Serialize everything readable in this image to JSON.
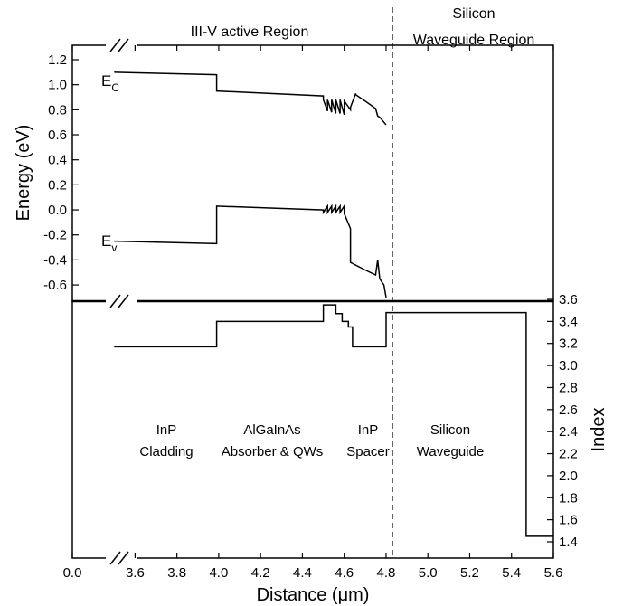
{
  "chart_data": [
    {
      "type": "line",
      "panel": "top",
      "ylabel": "Energy (eV)",
      "ylim": [
        -0.7,
        1.3
      ],
      "yticks": [
        "1.2",
        "1.0",
        "0.8",
        "0.6",
        "0.4",
        "0.2",
        "0.0",
        "-0.2",
        "-0.4",
        "-0.6"
      ],
      "xlim": [
        3.3,
        5.6
      ],
      "series": [
        {
          "name": "E",
          "sub": "C",
          "x": [
            3.5,
            3.99,
            3.99,
            4.5,
            4.5,
            4.52,
            4.52,
            4.54,
            4.54,
            4.56,
            4.56,
            4.58,
            4.58,
            4.6,
            4.6,
            4.63,
            4.63,
            4.655,
            4.655,
            4.7,
            4.75,
            4.76,
            4.77,
            4.79,
            4.8
          ],
          "y": [
            1.1,
            1.08,
            0.95,
            0.91,
            0.88,
            0.79,
            0.88,
            0.78,
            0.88,
            0.77,
            0.88,
            0.77,
            0.88,
            0.76,
            0.87,
            0.8,
            0.82,
            0.93,
            0.92,
            0.87,
            0.81,
            0.75,
            0.74,
            0.7,
            0.68
          ]
        },
        {
          "name": "E",
          "sub": "v",
          "x": [
            3.5,
            3.99,
            3.99,
            4.5,
            4.5,
            4.52,
            4.52,
            4.54,
            4.54,
            4.56,
            4.56,
            4.58,
            4.58,
            4.6,
            4.6,
            4.63,
            4.63,
            4.7,
            4.75,
            4.76,
            4.77,
            4.79,
            4.8
          ],
          "y": [
            -0.25,
            -0.27,
            0.03,
            0.0,
            -0.02,
            0.03,
            -0.02,
            0.03,
            -0.02,
            0.03,
            -0.02,
            0.03,
            -0.02,
            0.03,
            -0.03,
            -0.15,
            -0.42,
            -0.48,
            -0.52,
            -0.4,
            -0.55,
            -0.6,
            -0.7
          ]
        }
      ],
      "band_labels": {
        "ec_main": "E",
        "ec_sub": "C",
        "ev_main": "E",
        "ev_sub": "v"
      },
      "regions": [
        "III-V active Region",
        "Silicon",
        "Waveguide Region"
      ],
      "interface_x": 4.8,
      "axis_break": true
    },
    {
      "type": "line",
      "panel": "bottom",
      "xlabel": "Distance (μm)",
      "ylabel": "Index",
      "ylim": [
        1.3,
        3.6
      ],
      "yticks": [
        "3.6",
        "3.4",
        "3.2",
        "3.0",
        "2.8",
        "2.6",
        "2.4",
        "2.2",
        "2.0",
        "1.8",
        "1.6",
        "1.4"
      ],
      "xlim": [
        3.3,
        5.6
      ],
      "xticks": [
        "0.0",
        "3.6",
        "3.8",
        "4.0",
        "4.2",
        "4.4",
        "4.6",
        "4.8",
        "5.0",
        "5.2",
        "5.4",
        "5.6"
      ],
      "series": [
        {
          "name": "",
          "x": [
            3.5,
            3.99,
            3.99,
            4.5,
            4.5,
            4.56,
            4.56,
            4.59,
            4.59,
            4.62,
            4.62,
            4.64,
            4.64,
            4.8,
            4.8,
            5.47,
            5.47,
            5.6
          ],
          "y": [
            3.17,
            3.17,
            3.4,
            3.4,
            3.55,
            3.55,
            3.47,
            3.47,
            3.4,
            3.4,
            3.35,
            3.35,
            3.17,
            3.17,
            3.48,
            3.48,
            1.45,
            1.45
          ]
        }
      ],
      "layer_labels": [
        [
          "InP",
          "Cladding"
        ],
        [
          "AlGaInAs",
          "Absorber & QWs"
        ],
        [
          "InP",
          "Spacer"
        ],
        [
          "Silicon",
          "Waveguide"
        ]
      ],
      "interface_x": 4.8,
      "axis_break": true
    }
  ]
}
